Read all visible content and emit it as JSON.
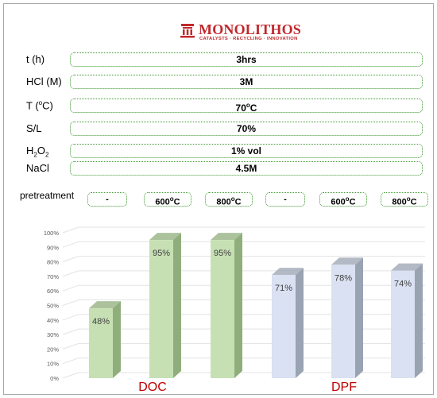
{
  "logo": {
    "name": "MONOLITHOS",
    "tagline": "CATALYSTS · RECYCLING · INNOVATION",
    "brand_color": "#c0282c",
    "icon": "building-logo-icon"
  },
  "parameters": [
    {
      "label": "t (h)",
      "value": "3hrs"
    },
    {
      "label": "HCl (M)",
      "value": "3M"
    },
    {
      "label": "T (oC)",
      "value": "70oC"
    },
    {
      "label": "S/L",
      "value": "70%"
    },
    {
      "label": "H2O2",
      "value": "1% vol"
    },
    {
      "label": "NaCl",
      "value": "4.5M"
    }
  ],
  "pretreatment": {
    "label": "pretreatment",
    "values": [
      "-",
      "600oC",
      "800oC",
      "-",
      "600oC",
      "800oC"
    ]
  },
  "colors": {
    "box_border": "#3c9a2e",
    "doc_bar": "#c6e0b4",
    "doc_bar_side": "#8fae7c",
    "dpf_bar": "#d9e1f2",
    "dpf_bar_side": "#9aa3b2",
    "group_label": "#c00000",
    "axis_text": "#595959"
  },
  "chart_data": {
    "type": "bar",
    "categories": [
      "-",
      "600oC",
      "800oC",
      "-",
      "600oC",
      "800oC"
    ],
    "groups": [
      {
        "name": "DOC",
        "values": [
          48,
          95,
          95
        ]
      },
      {
        "name": "DPF",
        "values": [
          71,
          78,
          74
        ]
      }
    ],
    "values": [
      48,
      95,
      95,
      71,
      78,
      74
    ],
    "data_labels": [
      "48%",
      "95%",
      "95%",
      "71%",
      "78%",
      "74%"
    ],
    "y_ticks": [
      "0%",
      "10%",
      "20%",
      "30%",
      "40%",
      "50%",
      "60%",
      "70%",
      "80%",
      "90%",
      "100%"
    ],
    "ylim": [
      0,
      100
    ],
    "grid": true,
    "style": "3d-column"
  }
}
